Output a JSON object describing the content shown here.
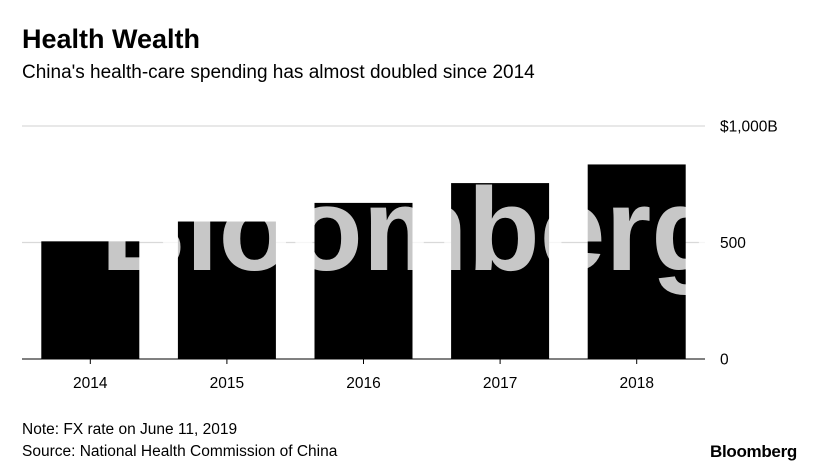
{
  "chart_data": {
    "type": "bar",
    "title": "Health Wealth",
    "subtitle": "China's health-care spending has almost doubled since 2014",
    "categories": [
      "2014",
      "2015",
      "2016",
      "2017",
      "2018"
    ],
    "values": [
      505,
      590,
      670,
      755,
      835
    ],
    "ylim": [
      0,
      1000
    ],
    "yticks": [
      0,
      500,
      1000
    ],
    "ytick_labels": [
      "0",
      "500",
      "$1,000B"
    ],
    "xlabel": "",
    "ylabel": "",
    "grid": true,
    "colors": {
      "bar": "#000000",
      "grid": "#d9d9d9"
    }
  },
  "footer": {
    "note": "Note: FX rate on June 11, 2019",
    "source": "Source: National Health Commission of China",
    "brand": "Bloomberg"
  },
  "watermark": "Bloomberg"
}
